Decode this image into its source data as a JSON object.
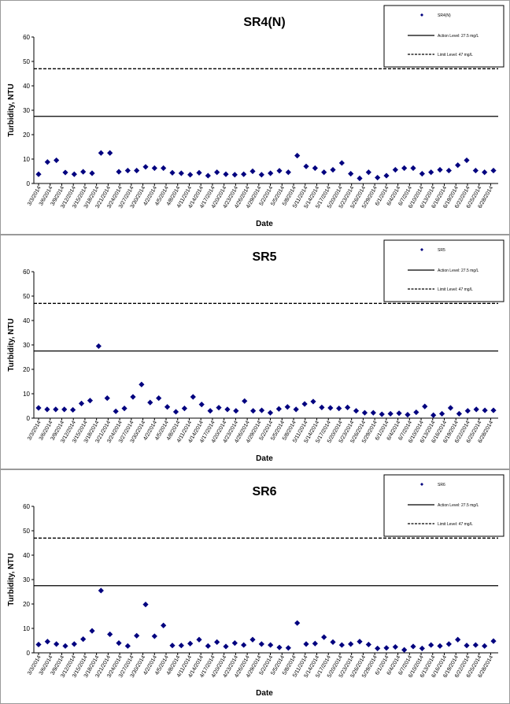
{
  "chart_data": [
    {
      "type": "scatter",
      "title": "SR4(N)",
      "xlabel": "Date",
      "ylabel": "Turbidity, NTU",
      "ylim": [
        0,
        60
      ],
      "yticks": [
        0,
        10,
        20,
        30,
        40,
        50,
        60
      ],
      "xtick_labels": [
        "3/3/2014",
        "3/6/2014",
        "3/9/2014",
        "3/12/2014",
        "3/15/2014",
        "3/18/2014",
        "3/21/2014",
        "3/24/2014",
        "3/27/2014",
        "3/30/2014",
        "4/2/2014",
        "4/5/2014",
        "4/8/2014",
        "4/11/2014",
        "4/14/2014",
        "4/17/2014",
        "4/20/2014",
        "4/23/2014",
        "4/26/2014",
        "4/29/2014",
        "5/2/2014",
        "5/5/2014",
        "5/8/2014",
        "5/11/2014",
        "5/14/2014",
        "5/17/2014",
        "5/20/2014",
        "5/23/2014",
        "5/26/2014",
        "5/29/2014",
        "6/1/2014",
        "6/4/2014",
        "6/7/2014",
        "6/10/2014",
        "6/13/2014",
        "6/16/2014",
        "6/19/2014",
        "6/22/2014",
        "6/25/2014",
        "6/28/2014"
      ],
      "series": [
        {
          "name": "SR4(N)",
          "marker": "diamond",
          "color": "#00007f",
          "values": [
            3.8,
            8.8,
            9.5,
            4.5,
            3.8,
            4.8,
            4.2,
            12.5,
            12.5,
            4.8,
            5.3,
            5.3,
            6.8,
            6.3,
            6.3,
            4.4,
            4.2,
            3.6,
            4.4,
            3.2,
            4.6,
            3.8,
            3.6,
            3.8,
            5.0,
            3.6,
            4.2,
            5.2,
            4.6,
            11.4,
            7.0,
            6.3,
            4.6,
            5.6,
            8.4,
            4.0,
            2.1,
            4.6,
            2.4,
            3.2,
            5.6,
            6.3,
            6.3,
            4.0,
            4.6,
            5.6,
            5.3,
            7.5,
            9.5,
            5.3,
            4.6,
            5.3
          ]
        },
        {
          "name": "Action Level: 27.5 mg/L",
          "style": "solid",
          "value": 27.5
        },
        {
          "name": "Limit Level: 47 mg/L",
          "style": "dashed",
          "value": 47
        }
      ],
      "legend": "top-right"
    },
    {
      "type": "scatter",
      "title": "SR5",
      "xlabel": "Date",
      "ylabel": "Turbidity, NTU",
      "ylim": [
        0,
        60
      ],
      "yticks": [
        0,
        10,
        20,
        30,
        40,
        50,
        60
      ],
      "xtick_labels": [
        "3/3/2014",
        "3/6/2014",
        "3/9/2014",
        "3/12/2014",
        "3/15/2014",
        "3/18/2014",
        "3/21/2014",
        "3/24/2014",
        "3/27/2014",
        "3/30/2014",
        "4/2/2014",
        "4/5/2014",
        "4/8/2014",
        "4/11/2014",
        "4/14/2014",
        "4/17/2014",
        "4/20/2014",
        "4/23/2014",
        "4/26/2014",
        "4/29/2014",
        "5/2/2014",
        "5/5/2014",
        "5/8/2014",
        "5/11/2014",
        "5/14/2014",
        "5/17/2014",
        "5/20/2014",
        "5/23/2014",
        "5/26/2014",
        "5/29/2014",
        "6/1/2014",
        "6/4/2014",
        "6/7/2014",
        "6/10/2014",
        "6/13/2014",
        "6/16/2014",
        "6/19/2014",
        "6/22/2014",
        "6/25/2014",
        "6/28/2014"
      ],
      "series": [
        {
          "name": "SR5",
          "marker": "diamond",
          "color": "#00007f",
          "values": [
            4.2,
            3.6,
            3.6,
            3.6,
            3.4,
            6.0,
            7.2,
            29.5,
            8.2,
            2.8,
            4.0,
            8.7,
            13.8,
            6.4,
            8.2,
            4.6,
            2.6,
            4.0,
            8.7,
            5.6,
            3.0,
            4.3,
            3.6,
            3.0,
            7.0,
            3.0,
            3.2,
            2.2,
            3.8,
            4.6,
            3.6,
            5.8,
            6.8,
            4.4,
            4.2,
            4.0,
            4.4,
            3.0,
            2.2,
            2.2,
            1.6,
            1.8,
            2.0,
            1.4,
            2.4,
            4.8,
            1.2,
            1.8,
            4.2,
            1.8,
            3.0,
            3.6,
            3.2,
            3.2
          ]
        },
        {
          "name": "Action Level: 27.5 mg/L",
          "style": "solid",
          "value": 27.5
        },
        {
          "name": "Limit Level: 47 mg/L",
          "style": "dashed",
          "value": 47
        }
      ],
      "legend": "top-right"
    },
    {
      "type": "scatter",
      "title": "SR6",
      "xlabel": "Date",
      "ylabel": "Turbidity, NTU",
      "ylim": [
        0,
        60
      ],
      "yticks": [
        0,
        10,
        20,
        30,
        40,
        50,
        60
      ],
      "xtick_labels": [
        "3/3/2014",
        "3/6/2014",
        "3/9/2014",
        "3/12/2014",
        "3/15/2014",
        "3/18/2014",
        "3/21/2014",
        "3/24/2014",
        "3/27/2014",
        "3/30/2014",
        "4/2/2014",
        "4/5/2014",
        "4/8/2014",
        "4/11/2014",
        "4/14/2014",
        "4/17/2014",
        "4/20/2014",
        "4/23/2014",
        "4/26/2014",
        "4/29/2014",
        "5/2/2014",
        "5/5/2014",
        "5/8/2014",
        "5/11/2014",
        "5/14/2014",
        "5/17/2014",
        "5/20/2014",
        "5/23/2014",
        "5/26/2014",
        "5/29/2014",
        "6/1/2014",
        "6/4/2014",
        "6/7/2014",
        "6/10/2014",
        "6/13/2014",
        "6/16/2014",
        "6/19/2014",
        "6/22/2014",
        "6/25/2014",
        "6/28/2014"
      ],
      "series": [
        {
          "name": "SR6",
          "marker": "diamond",
          "color": "#00007f",
          "values": [
            3.4,
            4.6,
            3.6,
            2.8,
            3.6,
            5.6,
            9.0,
            25.5,
            7.6,
            4.0,
            2.8,
            7.0,
            19.8,
            6.8,
            11.2,
            3.0,
            3.0,
            3.8,
            5.4,
            2.8,
            4.4,
            2.6,
            4.0,
            3.2,
            5.4,
            3.6,
            3.2,
            2.2,
            2.0,
            12.2,
            3.6,
            3.8,
            6.4,
            4.4,
            3.2,
            3.6,
            4.6,
            3.4,
            1.8,
            2.0,
            2.4,
            1.2,
            2.6,
            1.8,
            3.2,
            2.8,
            3.6,
            5.4,
            3.0,
            3.2,
            2.8,
            4.8
          ]
        },
        {
          "name": "Action Level: 27.5 mg/L",
          "style": "solid",
          "value": 27.5
        },
        {
          "name": "Limit Level: 47 mg/L",
          "style": "dashed",
          "value": 47
        }
      ],
      "legend": "top-right"
    }
  ]
}
